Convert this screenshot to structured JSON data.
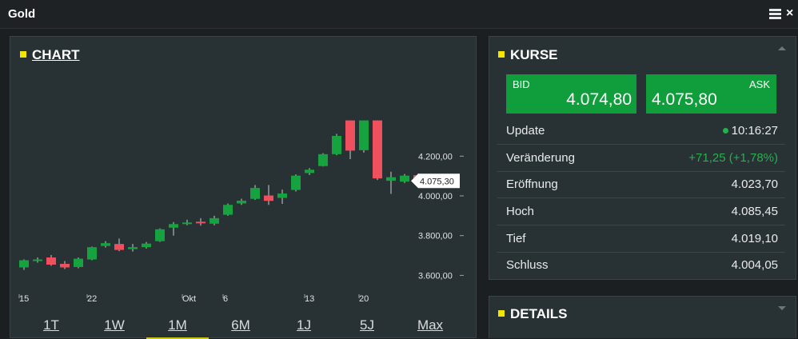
{
  "window": {
    "title": "Gold",
    "menu_icon": "hamburger-menu-icon",
    "close_icon": "close-icon",
    "close_glyph": "×"
  },
  "chart_panel": {
    "title": "CHART",
    "ranges": [
      "1T",
      "1W",
      "1M",
      "6M",
      "1J",
      "5J",
      "Max"
    ],
    "active_range": "1M"
  },
  "chart_data": {
    "type": "candlestick",
    "y_ticks": [
      "3.600,00",
      "3.800,00",
      "4.000,00",
      "4.200,00"
    ],
    "y_tick_values": [
      3600,
      3800,
      4000,
      4200
    ],
    "ylim": [
      3505,
      4640
    ],
    "x_labels": [
      "15",
      "22",
      "Okt",
      "6",
      "13",
      "20"
    ],
    "x_label_index": [
      0,
      5,
      12,
      15,
      21,
      25
    ],
    "current_price_label": "4.075,30",
    "current_price": 4075.3,
    "candles": [
      {
        "o": 3640,
        "h": 3680,
        "l": 3628,
        "c": 3676
      },
      {
        "o": 3672,
        "h": 3690,
        "l": 3664,
        "c": 3680
      },
      {
        "o": 3690,
        "h": 3702,
        "l": 3648,
        "c": 3654
      },
      {
        "o": 3658,
        "h": 3672,
        "l": 3632,
        "c": 3640
      },
      {
        "o": 3642,
        "h": 3690,
        "l": 3636,
        "c": 3684
      },
      {
        "o": 3680,
        "h": 3745,
        "l": 3676,
        "c": 3742
      },
      {
        "o": 3748,
        "h": 3772,
        "l": 3740,
        "c": 3762
      },
      {
        "o": 3758,
        "h": 3785,
        "l": 3722,
        "c": 3728
      },
      {
        "o": 3732,
        "h": 3758,
        "l": 3720,
        "c": 3742
      },
      {
        "o": 3742,
        "h": 3768,
        "l": 3735,
        "c": 3760
      },
      {
        "o": 3772,
        "h": 3836,
        "l": 3768,
        "c": 3832
      },
      {
        "o": 3840,
        "h": 3868,
        "l": 3800,
        "c": 3858
      },
      {
        "o": 3862,
        "h": 3880,
        "l": 3852,
        "c": 3866
      },
      {
        "o": 3870,
        "h": 3888,
        "l": 3850,
        "c": 3864
      },
      {
        "o": 3860,
        "h": 3900,
        "l": 3852,
        "c": 3888
      },
      {
        "o": 3905,
        "h": 3962,
        "l": 3900,
        "c": 3955
      },
      {
        "o": 3962,
        "h": 3986,
        "l": 3955,
        "c": 3976
      },
      {
        "o": 3985,
        "h": 4055,
        "l": 3980,
        "c": 4040
      },
      {
        "o": 4002,
        "h": 4055,
        "l": 3955,
        "c": 3975
      },
      {
        "o": 3990,
        "h": 4032,
        "l": 3960,
        "c": 4012
      },
      {
        "o": 4030,
        "h": 4108,
        "l": 4022,
        "c": 4102
      },
      {
        "o": 4115,
        "h": 4140,
        "l": 4105,
        "c": 4132
      },
      {
        "o": 4150,
        "h": 4215,
        "l": 4148,
        "c": 4210
      },
      {
        "o": 4210,
        "h": 4312,
        "l": 4205,
        "c": 4302
      },
      {
        "o": 4380,
        "h": 4380,
        "l": 4185,
        "c": 4228
      },
      {
        "o": 4230,
        "h": 4380,
        "l": 4218,
        "c": 4380
      },
      {
        "o": 4380,
        "h": 4380,
        "l": 4080,
        "c": 4088
      },
      {
        "o": 4076,
        "h": 4122,
        "l": 4010,
        "c": 4094
      },
      {
        "o": 4072,
        "h": 4110,
        "l": 4065,
        "c": 4102
      },
      {
        "o": 4104,
        "h": 4112,
        "l": 4072,
        "c": 4080
      }
    ]
  },
  "quotes_panel": {
    "title": "KURSE",
    "bid_label": "BID",
    "bid_value": "4.074,80",
    "ask_label": "ASK",
    "ask_value": "4.075,80",
    "rows": [
      {
        "label": "Update",
        "value": "10:16:27"
      },
      {
        "label": "Veränderung",
        "value": "+71,25 (+1,78%)"
      },
      {
        "label": "Eröffnung",
        "value": "4.023,70"
      },
      {
        "label": "Hoch",
        "value": "4.085,45"
      },
      {
        "label": "Tief",
        "value": "4.019,10"
      },
      {
        "label": "Schluss",
        "value": "4.004,05"
      }
    ]
  },
  "details_panel": {
    "title": "DETAILS"
  },
  "colors": {
    "up": "#15a23f",
    "down": "#f0505e",
    "accent": "#f3e500",
    "bid_ask_bg": "#0f9e3b"
  }
}
